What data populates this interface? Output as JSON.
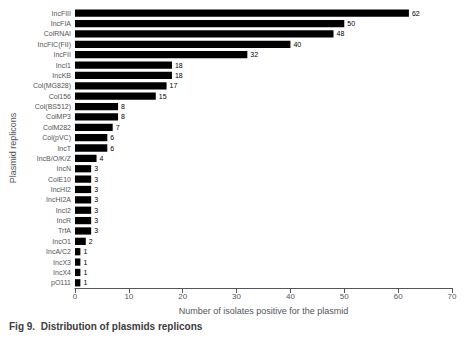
{
  "chart_data": {
    "type": "bar",
    "orientation": "horizontal",
    "title": "Fig 9.  Distribution of plasmids replicons",
    "xlabel": "Number of isolates positive for the plasmid",
    "ylabel": "Plasmid replicons",
    "categories": [
      "IncFIII",
      "IncFIA",
      "ColRNAI",
      "IncFIC(FII)",
      "IncFII",
      "IncI1",
      "IncKB",
      "Col(MG828)",
      "Col156",
      "Col(BS512)",
      "ColMP3",
      "ColM282",
      "Col(pVC)",
      "IncT",
      "IncB/O/K/Z",
      "IncN",
      "ColE10",
      "IncHI2",
      "IncHI2A",
      "IncI2",
      "IncR",
      "TrfA",
      "IncO1",
      "IncA/C2",
      "IncX3",
      "IncX4",
      "pO111"
    ],
    "values": [
      62,
      50,
      48,
      40,
      32,
      18,
      18,
      17,
      15,
      8,
      8,
      7,
      6,
      6,
      4,
      3,
      3,
      3,
      3,
      3,
      3,
      3,
      2,
      1,
      1,
      1,
      1
    ],
    "color": "#000000",
    "xlim": [
      0,
      70
    ],
    "xticks": [
      0,
      10,
      20,
      30,
      40,
      50,
      60,
      70
    ],
    "data_labels": true,
    "grid": false
  }
}
